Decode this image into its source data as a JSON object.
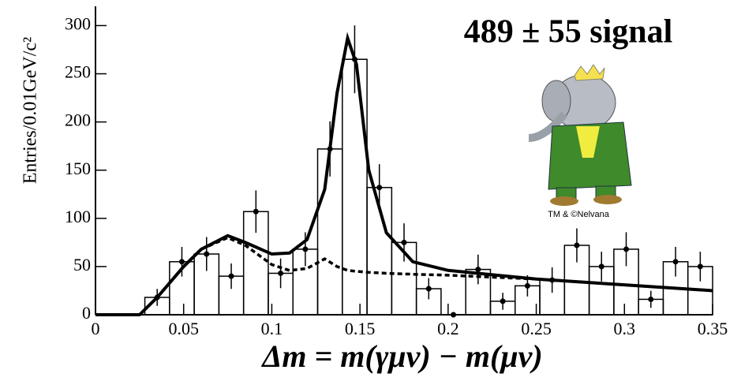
{
  "chart_data": {
    "type": "histogram",
    "annotation": "489 ± 55 signal",
    "y_label": "Entries/0.01GeV/c²",
    "x_label": "Δm = m(γμν) − m(μν)",
    "image_caption": "TM & ©Nelvana",
    "bins": [
      0.028,
      0.042,
      0.056,
      0.07,
      0.084,
      0.098,
      0.112,
      0.126,
      0.14,
      0.154,
      0.168,
      0.182,
      0.196,
      0.21,
      0.224,
      0.238,
      0.252,
      0.266,
      0.28,
      0.294,
      0.308,
      0.322,
      0.336,
      0.35
    ],
    "values": [
      18,
      55,
      63,
      40,
      107,
      43,
      68,
      172,
      265,
      132,
      75,
      27,
      0,
      47,
      14,
      30,
      36,
      72,
      50,
      68,
      16,
      55,
      50
    ],
    "errors": [
      4,
      7,
      8,
      6,
      10,
      7,
      8,
      13,
      16,
      11,
      9,
      5,
      0,
      7,
      4,
      5,
      6,
      8,
      7,
      8,
      4,
      7,
      7
    ],
    "fit": {
      "x": [
        0,
        0.025,
        0.035,
        0.05,
        0.06,
        0.075,
        0.085,
        0.1,
        0.11,
        0.12,
        0.13,
        0.137,
        0.143,
        0.148,
        0.155,
        0.165,
        0.18,
        0.2,
        0.25,
        0.3,
        0.35
      ],
      "total": [
        0,
        0,
        18,
        50,
        68,
        82,
        75,
        63,
        64,
        78,
        130,
        230,
        287,
        260,
        150,
        85,
        55,
        46,
        37,
        31,
        25
      ],
      "background": [
        0,
        0,
        18,
        50,
        68,
        80,
        72,
        52,
        46,
        48,
        58,
        50,
        46,
        45,
        44,
        43,
        42,
        41,
        37,
        31,
        25
      ]
    },
    "xlim": [
      0,
      0.35
    ],
    "ylim": [
      0,
      320
    ],
    "xticks": [
      0,
      0.05,
      0.1,
      0.15,
      0.2,
      0.25,
      0.3,
      0.35
    ],
    "yticks": [
      0,
      50,
      100,
      150,
      200,
      250,
      300
    ]
  }
}
